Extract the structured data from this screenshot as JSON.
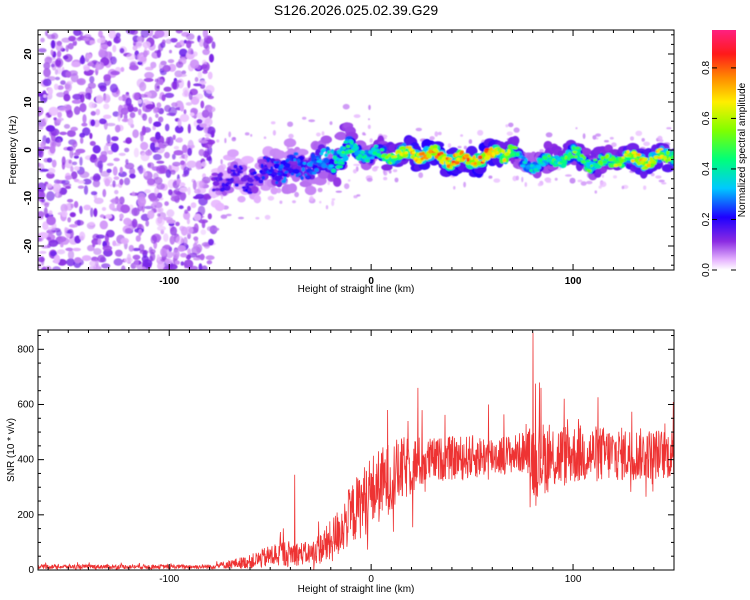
{
  "title": "S126.2026.025.02.39.G29",
  "chart_data": [
    {
      "type": "heatmap",
      "name": "spectrogram",
      "xlabel": "Height of straight line (km)",
      "ylabel": "Frequency (Hz)",
      "xlim": [
        -165,
        150
      ],
      "ylim": [
        -25,
        25
      ],
      "xticks": [
        -100,
        0,
        100
      ],
      "xtick_labels": [
        "-100",
        "0",
        "100"
      ],
      "yticks": [
        -20,
        -10,
        0,
        10,
        20
      ],
      "ytick_labels": [
        "-20",
        "-10",
        "0",
        "10",
        "20"
      ],
      "colorbar": {
        "label": "Normalized spectral amplitude",
        "range": [
          0,
          0.95
        ],
        "ticks": [
          0.0,
          0.2,
          0.4,
          0.6,
          0.8
        ],
        "tick_labels": [
          "0.0",
          "0.2",
          "0.4",
          "0.6",
          "0.8"
        ],
        "colormap": "rainbow"
      },
      "noise_region_x": [
        -165,
        -78
      ],
      "signal_ridge": {
        "x": [
          -78,
          -70,
          -60,
          -50,
          -40,
          -30,
          -20,
          -10,
          0,
          10,
          20,
          30,
          40,
          50,
          60,
          70,
          75,
          80,
          90,
          100,
          110,
          120,
          130,
          140,
          150
        ],
        "freq": [
          -7,
          -6,
          -6,
          -4,
          -4,
          -3,
          -2,
          0,
          -1,
          -1,
          -1,
          -1,
          -2,
          -2,
          -1,
          0,
          -3,
          -3,
          -2,
          -1,
          -3,
          -2,
          -2,
          -2,
          -1
        ],
        "amp": [
          0.15,
          0.2,
          0.2,
          0.25,
          0.3,
          0.3,
          0.4,
          0.5,
          0.4,
          0.6,
          0.75,
          0.8,
          0.8,
          0.85,
          0.8,
          0.6,
          0.35,
          0.4,
          0.5,
          0.55,
          0.5,
          0.6,
          0.7,
          0.75,
          0.6
        ]
      }
    },
    {
      "type": "line",
      "name": "snr",
      "xlabel": "Height of straight line (km)",
      "ylabel": "SNR (10 * v/v)",
      "xlim": [
        -165,
        150
      ],
      "ylim": [
        0,
        870
      ],
      "xticks": [
        -100,
        0,
        100
      ],
      "xtick_labels": [
        "-100",
        "0",
        "100"
      ],
      "yticks": [
        0,
        200,
        400,
        600,
        800
      ],
      "ytick_labels": [
        "0",
        "200",
        "400",
        "600",
        "800"
      ],
      "color": "#ee3333",
      "envelope": {
        "x": [
          -165,
          -80,
          -60,
          -45,
          -30,
          -20,
          -10,
          0,
          10,
          20,
          30,
          50,
          70,
          78,
          80,
          100,
          120,
          150
        ],
        "base": [
          12,
          12,
          30,
          60,
          60,
          100,
          200,
          280,
          340,
          380,
          400,
          410,
          420,
          430,
          400,
          420,
          420,
          420
        ],
        "noise": [
          8,
          8,
          25,
          50,
          40,
          80,
          110,
          140,
          130,
          110,
          80,
          80,
          70,
          80,
          140,
          110,
          100,
          90
        ]
      },
      "spikes": [
        {
          "x": -38,
          "y": 345
        },
        {
          "x": 8,
          "y": 580
        },
        {
          "x": 23,
          "y": 660
        },
        {
          "x": 80,
          "y": 860
        },
        {
          "x": 84,
          "y": 660
        },
        {
          "x": 58,
          "y": 600
        }
      ]
    }
  ]
}
